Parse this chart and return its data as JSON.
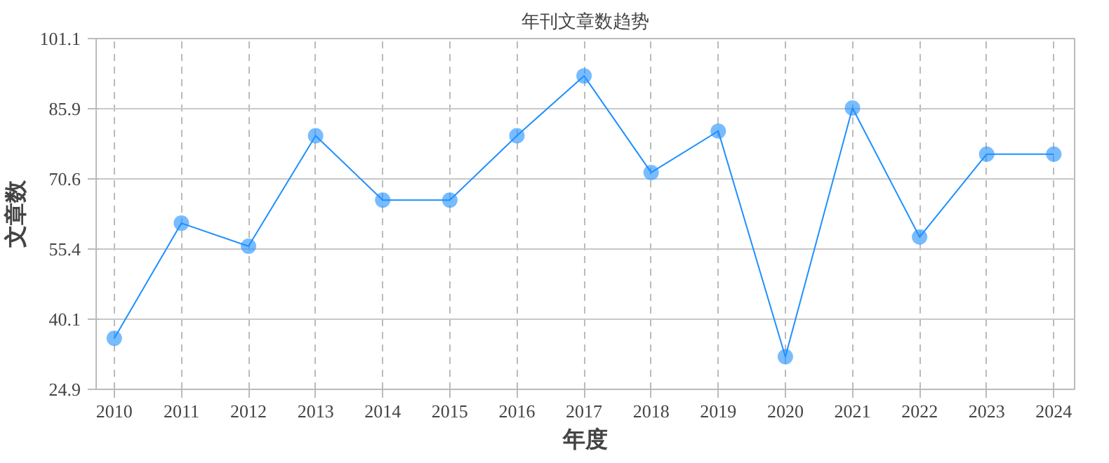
{
  "chart_data": {
    "type": "line",
    "title": "年刊文章数趋势",
    "xlabel": "年度",
    "ylabel": "文章数",
    "x": [
      2010,
      2011,
      2012,
      2013,
      2014,
      2015,
      2016,
      2017,
      2018,
      2019,
      2020,
      2021,
      2022,
      2023,
      2024
    ],
    "series": [
      {
        "color": "#1e90ff",
        "values": [
          36,
          61,
          56,
          80,
          66,
          66,
          80,
          93,
          72,
          81,
          32,
          86,
          58,
          76,
          76
        ]
      }
    ],
    "xlim": [
      2009.73,
      2024.31
    ],
    "xticks": [
      2010,
      2011,
      2012,
      2013,
      2014,
      2015,
      2016,
      2017,
      2018,
      2019,
      2020,
      2021,
      2022,
      2023,
      2024
    ],
    "ylim": [
      24.9,
      101.1
    ],
    "yticks": [
      24.9,
      40.1,
      55.4,
      70.6,
      85.9,
      101.1
    ],
    "grid": true,
    "marker": "circle",
    "line_style": "solid"
  }
}
